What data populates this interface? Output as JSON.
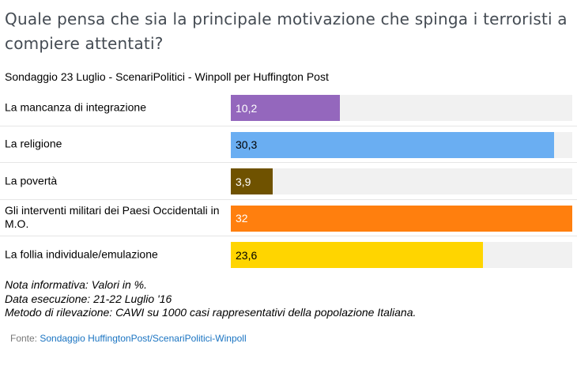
{
  "title": "Quale pensa che sia la principale motivazione che spinga i terroristi a compiere attentati?",
  "subtitle": "Sondaggio 23 Luglio - ScenariPolitici - Winpoll per Huffington Post",
  "chart_data": {
    "type": "bar",
    "orientation": "horizontal",
    "categories": [
      "La mancanza di integrazione",
      "La religione",
      "La povertà",
      "Gli interventi militari dei Paesi Occidentali in M.O.",
      "La follia individuale/emulazione"
    ],
    "values": [
      10.2,
      30.3,
      3.9,
      32,
      23.6
    ],
    "value_labels": [
      "10,2",
      "30,3",
      "3,9",
      "32",
      "23,6"
    ],
    "colors": [
      "#9467bd",
      "#6aaef2",
      "#6f5200",
      "#ff7f0e",
      "#ffd500"
    ],
    "label_colors": [
      "#ffffff",
      "#000000",
      "#ffffff",
      "#ffffff",
      "#000000"
    ],
    "xlim": [
      0,
      32
    ],
    "track_color": "#f1f1f1",
    "grid": false,
    "legend": "none"
  },
  "notes": [
    "Nota informativa: Valori in %.",
    "Data esecuzione: 21-22 Luglio '16",
    "Metodo di rilevazione: CAWI su 1000 casi rappresentativi della popolazione Italiana."
  ],
  "source": {
    "prefix": "Fonte: ",
    "link_text": "Sondaggio HuffingtonPost/ScenariPolitici-Winpoll"
  }
}
